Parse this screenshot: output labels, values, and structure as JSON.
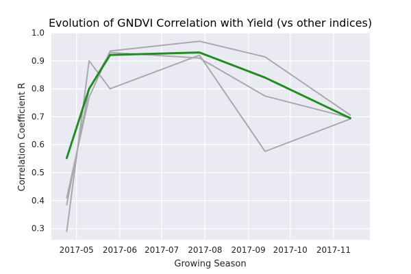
{
  "chart_data": {
    "type": "line",
    "title": "Evolution of GNDVI Correlation with Yield (vs other indices)",
    "xlabel": "Growing Season",
    "ylabel": "Correlation Coefficient R",
    "x_axis_type": "date",
    "xlim": [
      "2017-04-13",
      "2017-11-27"
    ],
    "ylim": [
      0.26,
      1.0
    ],
    "x_ticks": [
      "2017-05-01",
      "2017-06-01",
      "2017-07-01",
      "2017-08-01",
      "2017-09-01",
      "2017-10-01",
      "2017-11-01"
    ],
    "x_tick_labels": [
      "2017-05",
      "2017-06",
      "2017-07",
      "2017-08",
      "2017-09",
      "2017-10",
      "2017-11"
    ],
    "y_ticks": [
      0.3,
      0.4,
      0.5,
      0.6,
      0.7,
      0.8,
      0.9,
      1.0
    ],
    "y_tick_labels": [
      "0.3",
      "0.4",
      "0.5",
      "0.6",
      "0.7",
      "0.8",
      "0.9",
      "1.0"
    ],
    "grid": true,
    "legend": "none",
    "colors": {
      "background": "#eaeaf2",
      "grid": "#ffffff",
      "highlight": "#228b22",
      "others": "#a8a8ad"
    },
    "x": [
      "2017-04-24",
      "2017-05-10",
      "2017-05-25",
      "2017-07-28",
      "2017-09-13",
      "2017-11-13"
    ],
    "series": [
      {
        "values": [
          0.29,
          0.9,
          0.8,
          0.92,
          0.576,
          0.692
        ],
        "highlight": false
      },
      {
        "values": [
          0.385,
          0.8,
          0.93,
          0.91,
          0.774,
          0.696
        ],
        "highlight": false
      },
      {
        "values": [
          0.41,
          0.77,
          0.935,
          0.97,
          0.914,
          0.706
        ],
        "highlight": false
      },
      {
        "values": [
          0.552,
          0.8,
          0.921,
          0.93,
          0.84,
          0.695
        ],
        "highlight": true
      }
    ]
  }
}
